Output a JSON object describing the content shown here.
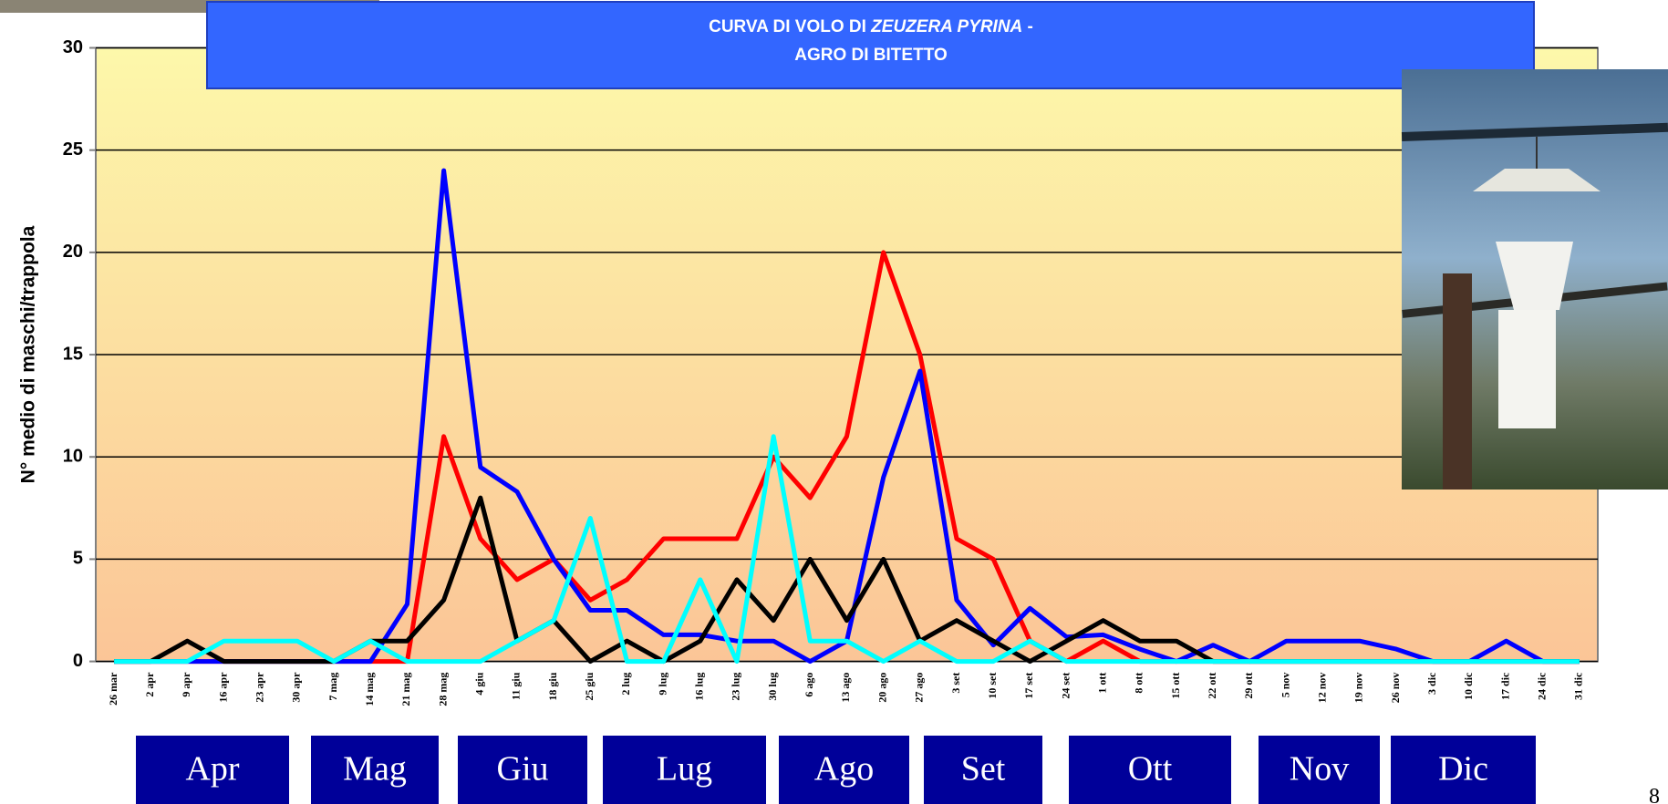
{
  "chart_data": {
    "type": "line",
    "title": {
      "line1": [
        "CURVA DI VOLO DI",
        "ZEUZERA PYRINA",
        "-"
      ],
      "line2": "AGRO DI BITETTO"
    },
    "y_label": "N° medio di maschi/trappola",
    "categories": [
      "26 mar",
      "2 apr",
      "9 apr",
      "16 apr",
      "23 apr",
      "30 apr",
      "7 mag",
      "14 mag",
      "21 mag",
      "28 mag",
      "4 giu",
      "11 giu",
      "18 giu",
      "25 giu",
      "2 lug",
      "9 lug",
      "16 lug",
      "23 lug",
      "30 lug",
      "6 ago",
      "13 ago",
      "20 ago",
      "27 ago",
      "3 set",
      "10 set",
      "17 set",
      "24 set",
      "1 ott",
      "8 ott",
      "15 ott",
      "22 ott",
      "29 ott",
      "5 nov",
      "12 nov",
      "19 nov",
      "26 nov",
      "3 dic",
      "10 dic",
      "17 dic",
      "24 dic",
      "31 dic"
    ],
    "series": [
      {
        "color": "#ff0000",
        "values": [
          0,
          0,
          0,
          0,
          0,
          0,
          0,
          0,
          0,
          11,
          6,
          4,
          5,
          3,
          4,
          6,
          6,
          6,
          10,
          8,
          11,
          20,
          15,
          6,
          5,
          1,
          0,
          1,
          0,
          0,
          0,
          0,
          0,
          0,
          0,
          0,
          0,
          0,
          0,
          0,
          0
        ]
      },
      {
        "color": "#0000ff",
        "values": [
          0,
          0,
          0,
          0,
          0,
          0,
          0,
          0,
          2.8,
          24,
          9.5,
          8.3,
          5,
          2.5,
          2.5,
          1.3,
          1.3,
          1,
          1,
          0,
          1,
          9,
          14.2,
          3,
          0.8,
          2.6,
          1.2,
          1.3,
          0.6,
          0,
          0.8,
          0,
          1,
          1,
          1,
          0.6,
          0,
          0,
          1,
          0,
          0
        ]
      },
      {
        "color": "#000000",
        "values": [
          0,
          0,
          1,
          0,
          0,
          0,
          0,
          1,
          1,
          3,
          8,
          1,
          2,
          0,
          1,
          0,
          1,
          4,
          2,
          5,
          2,
          5,
          1,
          2,
          1,
          0,
          1,
          2,
          1,
          1,
          0,
          0,
          0,
          0,
          0,
          0,
          0,
          0,
          0,
          0,
          0
        ]
      },
      {
        "color": "#00ffff",
        "values": [
          0,
          0,
          0,
          1,
          1,
          1,
          0,
          1,
          0,
          0,
          0,
          1,
          2,
          7,
          0,
          0,
          4,
          0,
          11,
          1,
          1,
          0,
          1,
          0,
          0,
          1,
          0,
          0,
          0,
          0,
          0,
          0,
          0,
          0,
          0,
          0,
          0,
          0,
          0,
          0,
          0
        ]
      }
    ],
    "ylim": [
      0,
      30
    ],
    "yticks": [
      0,
      5,
      10,
      15,
      20,
      25,
      30
    ],
    "grid": true,
    "month_labels": [
      "Apr",
      "Mag",
      "Giu",
      "Lug",
      "Ago",
      "Set",
      "Ott",
      "Nov",
      "Dic"
    ],
    "page_number": "8"
  }
}
